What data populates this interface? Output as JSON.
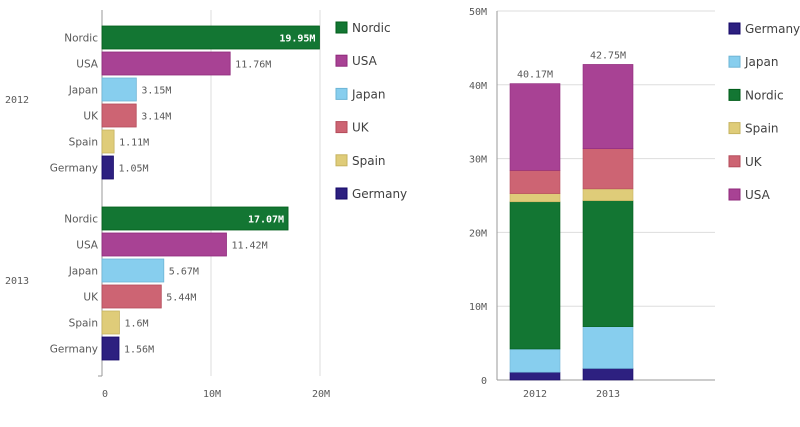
{
  "chart_data": [
    {
      "type": "bar",
      "orientation": "horizontal",
      "grouping": "grouped",
      "groups": [
        "2012",
        "2013"
      ],
      "categories": [
        "Nordic",
        "USA",
        "Japan",
        "UK",
        "Spain",
        "Germany"
      ],
      "values": {
        "2012": [
          19.95,
          11.76,
          3.15,
          3.14,
          1.11,
          1.05
        ],
        "2013": [
          17.07,
          11.42,
          5.67,
          5.44,
          1.6,
          1.56
        ]
      },
      "data_labels": {
        "2012": [
          "19.95M",
          "11.76M",
          "3.15M",
          "3.14M",
          "1.11M",
          "1.05M"
        ],
        "2013": [
          "17.07M",
          "11.42M",
          "5.67M",
          "5.44M",
          "1.6M",
          "1.56M"
        ]
      },
      "xlim": [
        0,
        20
      ],
      "x_ticks": [
        "0",
        "10M",
        "20M"
      ],
      "grid": true,
      "legend_position": "right",
      "legend": [
        "Nordic",
        "USA",
        "Japan",
        "UK",
        "Spain",
        "Germany"
      ]
    },
    {
      "type": "bar",
      "orientation": "vertical",
      "grouping": "stacked",
      "categories": [
        "2012",
        "2013"
      ],
      "series": [
        {
          "name": "Germany",
          "values": [
            1.05,
            1.56
          ]
        },
        {
          "name": "Japan",
          "values": [
            3.15,
            5.67
          ]
        },
        {
          "name": "Nordic",
          "values": [
            19.95,
            17.07
          ]
        },
        {
          "name": "Spain",
          "values": [
            1.11,
            1.6
          ]
        },
        {
          "name": "UK",
          "values": [
            3.14,
            5.44
          ]
        },
        {
          "name": "USA",
          "values": [
            11.76,
            11.42
          ]
        }
      ],
      "total_labels": [
        "40.17M",
        "42.75M"
      ],
      "ylim": [
        0,
        50
      ],
      "y_ticks": [
        "0",
        "10M",
        "20M",
        "30M",
        "40M",
        "50M"
      ],
      "grid": true,
      "legend_position": "right",
      "legend": [
        "Germany",
        "Japan",
        "Nordic",
        "Spain",
        "UK",
        "USA"
      ]
    }
  ],
  "colors": {
    "Nordic": "#137633",
    "USA": "#a84294",
    "Japan": "#87ceee",
    "UK": "#cd6473",
    "Spain": "#dfcc79",
    "Germany": "#2d2080"
  }
}
